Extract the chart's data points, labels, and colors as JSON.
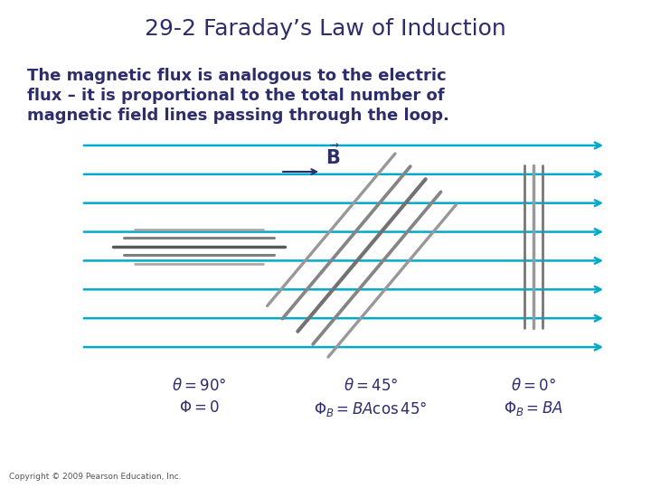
{
  "title": "29-2 Faraday’s Law of Induction",
  "title_color": "#2d2d6e",
  "title_fontsize": 18,
  "body_text_line1": "The magnetic flux is analogous to the electric",
  "body_text_line2": "flux – it is proportional to the total number of",
  "body_text_line3": "magnetic field lines passing through the loop.",
  "body_color": "#2d2d6e",
  "body_fontsize": 13,
  "copyright": "Copyright © 2009 Pearson Education, Inc.",
  "copyright_fontsize": 6.5,
  "bg_color": "#ffffff",
  "arrow_color": "#00aacc",
  "loop_gray_dark": "#555555",
  "loop_gray_mid": "#888888",
  "loop_gray_light": "#bbbbbb",
  "label_color": "#2d2d6e",
  "label_fontsize": 12,
  "num_field_lines": 8
}
